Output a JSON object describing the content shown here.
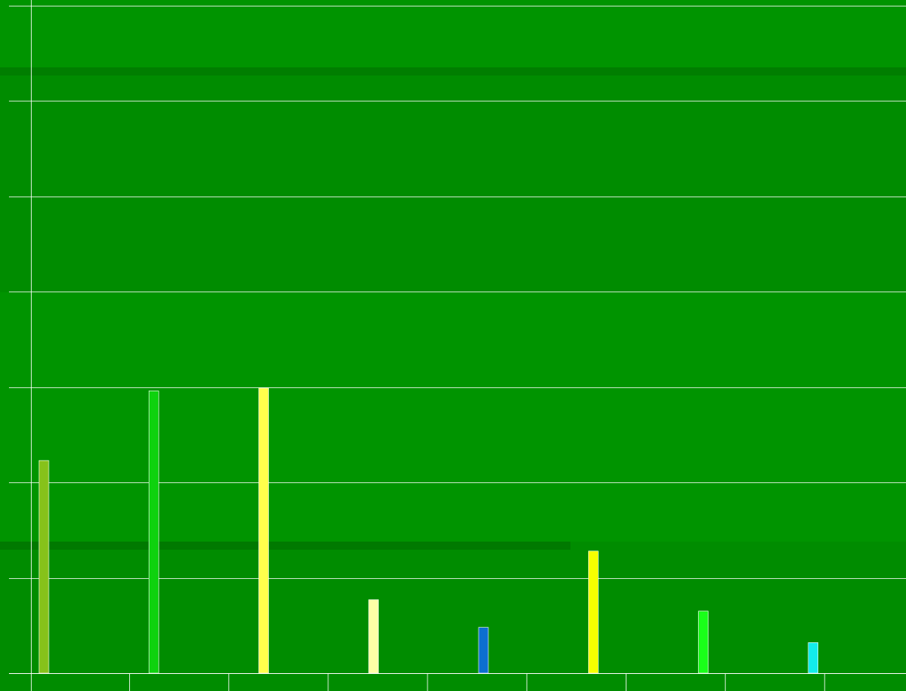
{
  "chart_data": {
    "type": "bar",
    "title": "",
    "xlabel": "",
    "ylabel": "",
    "grid": true,
    "ylim": [
      0,
      7
    ],
    "categories": [
      "",
      "",
      "",
      "",
      "",
      "",
      "",
      ""
    ],
    "series": [
      {
        "values": [
          2.23,
          2.96,
          2.99,
          0.77,
          0.48,
          1.28,
          0.65,
          0.32
        ],
        "colors": [
          "#86c21a",
          "#0ed20e",
          "#ffff4c",
          "#ffffa6",
          "#0c6fd0",
          "#f6ff00",
          "#19ff19",
          "#13ecec"
        ]
      }
    ],
    "colors": {
      "background": "#008c00",
      "band_light": "#009400",
      "grid": "#ffffff",
      "bar_stroke": "#ffffff"
    }
  }
}
